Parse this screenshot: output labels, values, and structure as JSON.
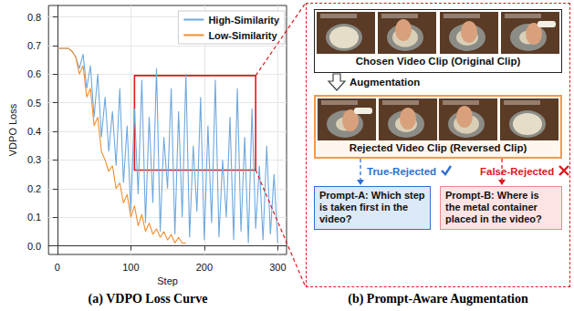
{
  "chart_data": {
    "type": "line",
    "title": "(a) VDPO Loss Curve",
    "x_label": "Step",
    "y_label": "VDPO Loss",
    "x": [
      0,
      5,
      10,
      15,
      20,
      25,
      30,
      35,
      40,
      45,
      50,
      55,
      60,
      65,
      70,
      75,
      80,
      85,
      90,
      95,
      100,
      105,
      110,
      115,
      120,
      125,
      130,
      135,
      140,
      145,
      150,
      155,
      160,
      165,
      170,
      175,
      180,
      185,
      190,
      195,
      200,
      205,
      210,
      215,
      220,
      225,
      230,
      235,
      240,
      245,
      250,
      255,
      260,
      265,
      270,
      275,
      280,
      285,
      290,
      295,
      300
    ],
    "series": [
      {
        "name": "High-Similarity",
        "color": "#6fa8dc",
        "values": [
          0.69,
          0.69,
          0.69,
          0.69,
          0.68,
          0.66,
          0.62,
          0.67,
          0.55,
          0.63,
          0.45,
          0.6,
          0.38,
          0.52,
          0.33,
          0.47,
          0.28,
          0.55,
          0.22,
          0.42,
          0.12,
          0.48,
          0.18,
          0.58,
          0.08,
          0.45,
          0.15,
          0.62,
          0.05,
          0.38,
          0.2,
          0.55,
          0.04,
          0.47,
          0.1,
          0.6,
          0.03,
          0.35,
          0.12,
          0.52,
          0.02,
          0.42,
          0.08,
          0.58,
          0.03,
          0.3,
          0.1,
          0.45,
          0.02,
          0.55,
          0.05,
          0.38,
          0.01,
          0.48,
          0.06,
          0.28,
          0.02,
          0.35,
          0.04,
          0.25,
          0.01
        ]
      },
      {
        "name": "Low-Similarity",
        "color": "#f28e2b",
        "values": [
          0.69,
          0.69,
          0.69,
          0.69,
          0.68,
          0.66,
          0.6,
          0.63,
          0.52,
          0.55,
          0.42,
          0.45,
          0.33,
          0.3,
          0.26,
          0.28,
          0.2,
          0.22,
          0.15,
          0.18,
          0.1,
          0.14,
          0.07,
          0.11,
          0.05,
          0.08,
          0.04,
          0.06,
          0.03,
          0.05,
          0.02,
          0.04,
          0.01,
          0.03,
          0.01,
          0.01,
          null,
          null,
          null,
          null,
          null,
          null,
          null,
          null,
          null,
          null,
          null,
          null,
          null,
          null,
          null,
          null,
          null,
          null,
          null,
          null,
          null,
          null,
          null,
          null,
          null
        ]
      }
    ],
    "xlim": [
      -12,
      312
    ],
    "xticks": [
      0,
      100,
      200,
      300
    ],
    "ylim": [
      -0.03,
      0.84
    ],
    "yticks": [
      {
        "value": 0,
        "label": "0.0"
      },
      0.1,
      0.2,
      0.3,
      0.4,
      0.5,
      0.6,
      0.7,
      0.8
    ],
    "grid": true,
    "legend": "upper right",
    "highlight": {
      "x": [
        105,
        270
      ],
      "y": [
        0.265,
        0.595
      ]
    }
  },
  "panel_b": {
    "caption": "(b) Prompt-Aware Augmentation",
    "chosen": "Chosen Video Clip (Original Clip)",
    "augmentation": "Augmentation",
    "rejected": "Rejected Video Clip (Reversed Clip)",
    "true_rejected": "True-Rejected",
    "false_rejected": "False-Rejected",
    "prompt_a": {
      "label": "Prompt-A:",
      "text": "Which step is taken first in the video?"
    },
    "prompt_b": {
      "label": "Prompt-B:",
      "text": "Where is the metal container placed in the video?"
    }
  }
}
